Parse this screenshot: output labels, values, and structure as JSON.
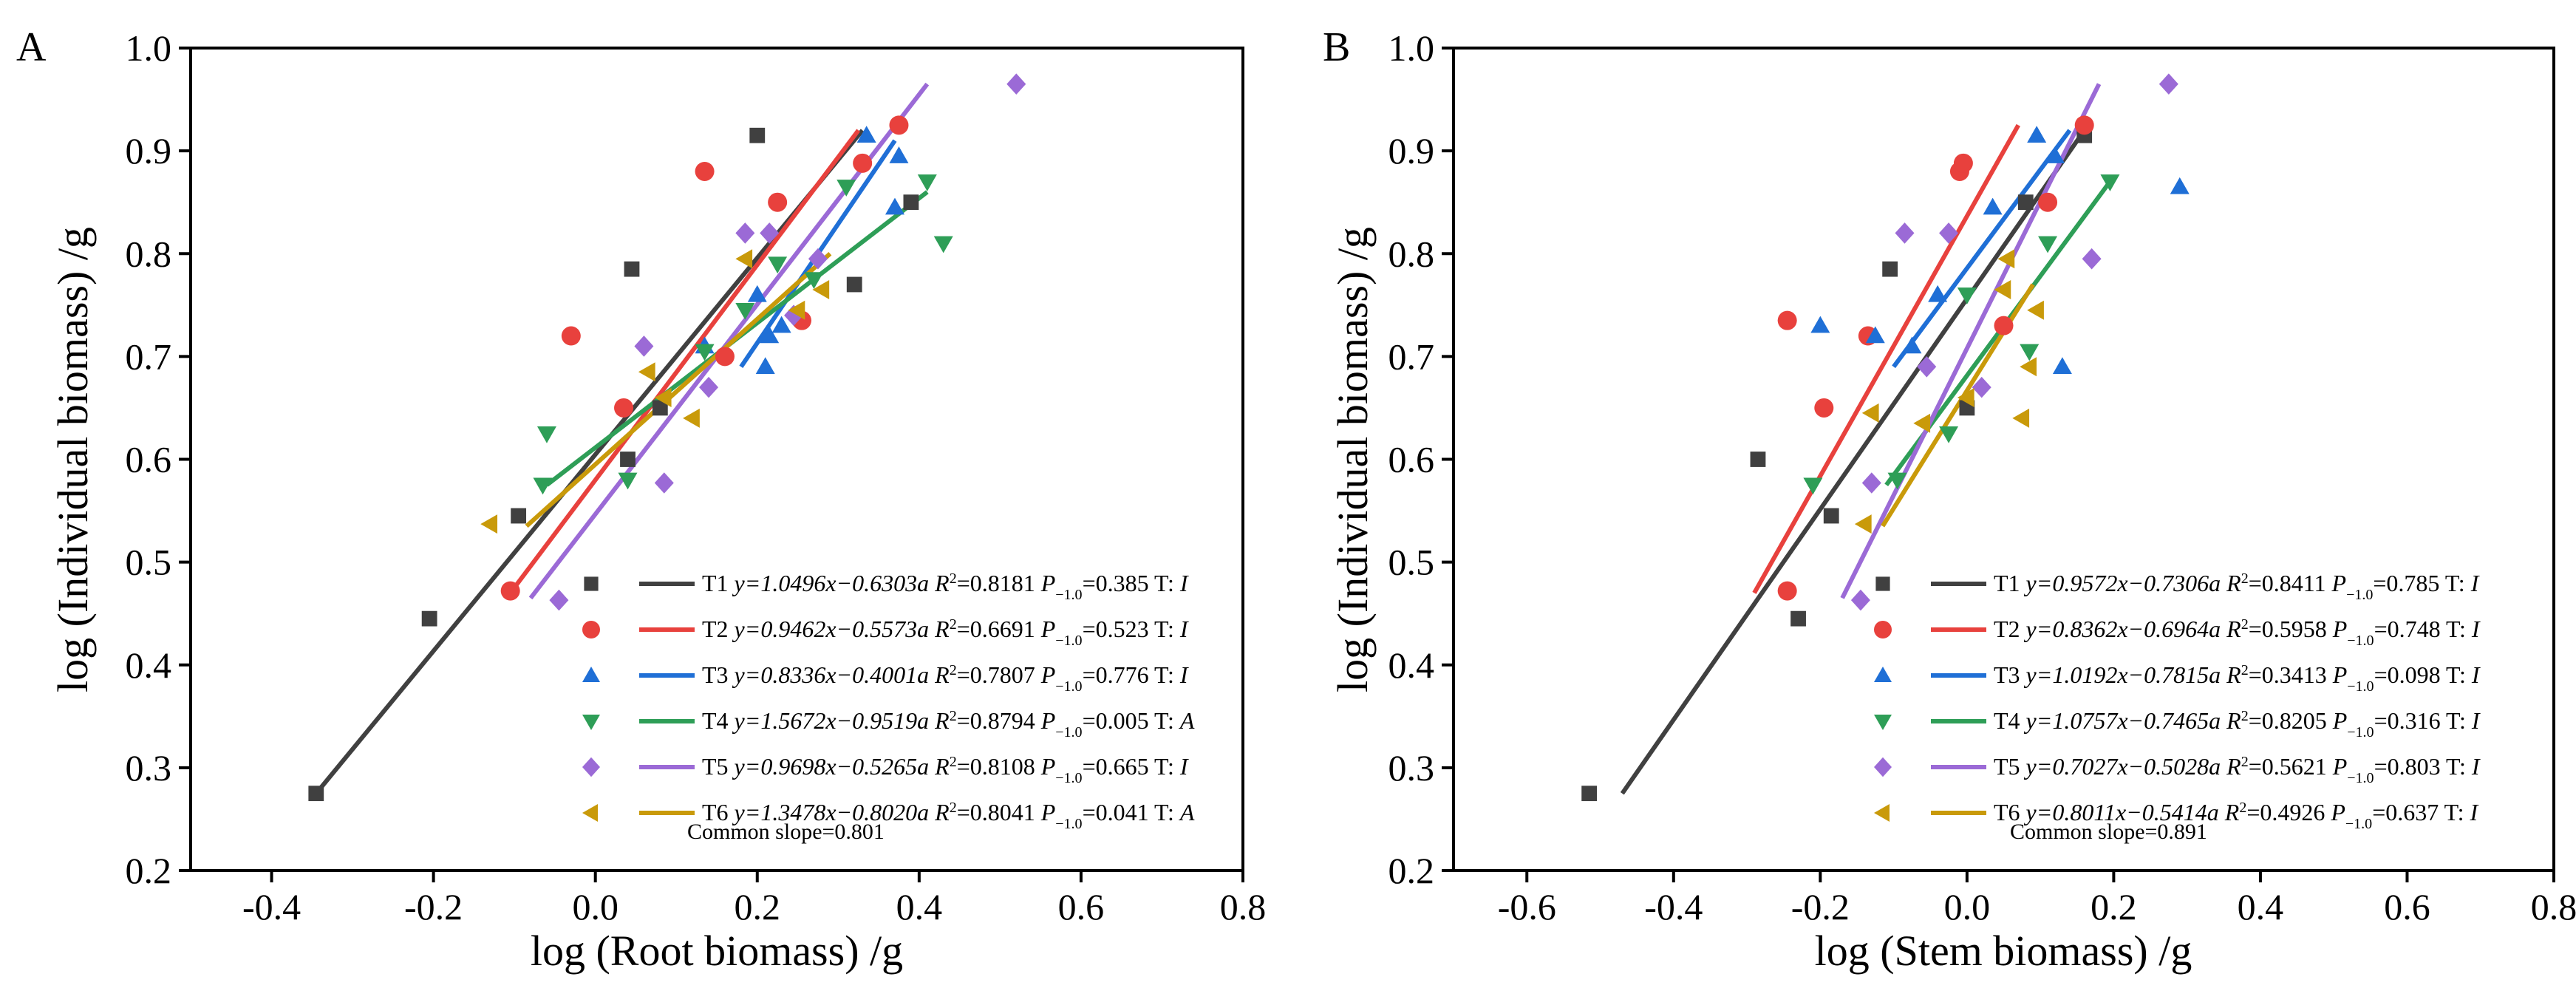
{
  "chart_data": [
    {
      "type": "scatter",
      "panel_label": "A",
      "xlabel": "log (Root biomass) /g",
      "ylabel": "log (Individual biomass) /g",
      "xlim": [
        -0.5,
        0.8
      ],
      "ylim": [
        0.2,
        1.0
      ],
      "xticks": [
        "-0.4",
        "-0.2",
        "0.0",
        "0.2",
        "0.4",
        "0.6",
        "0.8"
      ],
      "yticks": [
        "0.2",
        "0.3",
        "0.4",
        "0.5",
        "0.6",
        "0.7",
        "0.8",
        "0.9",
        "1.0"
      ],
      "legend_position": "bottom-right",
      "common_slope": "Common slope=0.801",
      "series": [
        {
          "name": "T1",
          "marker": "square",
          "color": "#404040",
          "equation": "y=1.0496x−0.6303a",
          "r2": "=0.8181",
          "p": "=0.385",
          "t": "I",
          "points": [
            [
              -0.345,
              0.275
            ],
            [
              -0.205,
              0.445
            ],
            [
              -0.095,
              0.545
            ],
            [
              0.04,
              0.6
            ],
            [
              0.045,
              0.785
            ],
            [
              0.2,
              0.915
            ],
            [
              0.32,
              0.77
            ],
            [
              0.39,
              0.85
            ],
            [
              0.08,
              0.65
            ]
          ],
          "line": [
            [
              -0.345,
              0.275
            ],
            [
              0.33,
              0.92
            ]
          ]
        },
        {
          "name": "T2",
          "marker": "circle",
          "color": "#e8413d",
          "equation": "y=0.9462x−0.5573a",
          "r2": "=0.6691",
          "p": "=0.523",
          "t": "I",
          "points": [
            [
              -0.105,
              0.472
            ],
            [
              -0.03,
              0.72
            ],
            [
              0.035,
              0.65
            ],
            [
              0.135,
              0.88
            ],
            [
              0.225,
              0.85
            ],
            [
              0.255,
              0.735
            ],
            [
              0.33,
              0.888
            ],
            [
              0.375,
              0.925
            ],
            [
              0.16,
              0.7
            ]
          ],
          "line": [
            [
              -0.105,
              0.47
            ],
            [
              0.325,
              0.92
            ]
          ]
        },
        {
          "name": "T3",
          "marker": "triangle-up",
          "color": "#1f6fd6",
          "equation": "y=0.8336x−0.4001a",
          "r2": "=0.7807",
          "p": "=0.776",
          "t": "I",
          "points": [
            [
              0.135,
              0.71
            ],
            [
              0.2,
              0.76
            ],
            [
              0.21,
              0.69
            ],
            [
              0.23,
              0.73
            ],
            [
              0.215,
              0.72
            ],
            [
              0.335,
              0.915
            ],
            [
              0.37,
              0.845
            ],
            [
              0.375,
              0.895
            ]
          ],
          "line": [
            [
              0.18,
              0.69
            ],
            [
              0.37,
              0.91
            ]
          ]
        },
        {
          "name": "T4",
          "marker": "triangle-down",
          "color": "#2e9e57",
          "equation": "y=1.5672x−0.9519a",
          "r2": "=0.8794",
          "p": "=0.005",
          "t": "A",
          "points": [
            [
              -0.06,
              0.625
            ],
            [
              -0.065,
              0.575
            ],
            [
              0.04,
              0.58
            ],
            [
              0.135,
              0.705
            ],
            [
              0.185,
              0.745
            ],
            [
              0.225,
              0.79
            ],
            [
              0.27,
              0.775
            ],
            [
              0.31,
              0.865
            ],
            [
              0.41,
              0.87
            ],
            [
              0.43,
              0.81
            ]
          ],
          "line": [
            [
              -0.06,
              0.575
            ],
            [
              0.41,
              0.86
            ]
          ]
        },
        {
          "name": "T5",
          "marker": "diamond",
          "color": "#9b6ad6",
          "equation": "y=0.9698x−0.5265a",
          "r2": "=0.8108",
          "p": "=0.665",
          "t": "I",
          "points": [
            [
              -0.045,
              0.463
            ],
            [
              0.06,
              0.71
            ],
            [
              0.085,
              0.577
            ],
            [
              0.14,
              0.67
            ],
            [
              0.185,
              0.82
            ],
            [
              0.215,
              0.82
            ],
            [
              0.245,
              0.74
            ],
            [
              0.275,
              0.795
            ],
            [
              0.52,
              0.965
            ]
          ],
          "line": [
            [
              -0.08,
              0.465
            ],
            [
              0.41,
              0.965
            ]
          ]
        },
        {
          "name": "T6",
          "marker": "triangle-left",
          "color": "#c99a0a",
          "equation": "y=1.3478x−0.8020a",
          "r2": "=0.8041",
          "p": "=0.041",
          "t": "A",
          "points": [
            [
              -0.13,
              0.537
            ],
            [
              0.065,
              0.685
            ],
            [
              0.085,
              0.66
            ],
            [
              0.12,
              0.64
            ],
            [
              0.185,
              0.795
            ],
            [
              0.25,
              0.745
            ],
            [
              0.28,
              0.765
            ]
          ],
          "line": [
            [
              -0.085,
              0.535
            ],
            [
              0.29,
              0.8
            ]
          ]
        }
      ]
    },
    {
      "type": "scatter",
      "panel_label": "B",
      "xlabel": "log (Stem biomass) /g",
      "ylabel": "log (Individual biomass) /g",
      "xlim": [
        -0.7,
        0.8
      ],
      "ylim": [
        0.2,
        1.0
      ],
      "xticks": [
        "-0.6",
        "-0.4",
        "-0.2",
        "0.0",
        "0.2",
        "0.4",
        "0.6",
        "0.8"
      ],
      "yticks": [
        "0.2",
        "0.3",
        "0.4",
        "0.5",
        "0.6",
        "0.7",
        "0.8",
        "0.9",
        "1.0"
      ],
      "legend_position": "bottom-right",
      "common_slope": "Common slope=0.891",
      "series": [
        {
          "name": "T1",
          "marker": "square",
          "color": "#404040",
          "equation": "y=0.9572x−0.7306a",
          "r2": "=0.8411",
          "p": "=0.785",
          "t": "I",
          "points": [
            [
              -0.515,
              0.275
            ],
            [
              -0.285,
              0.6
            ],
            [
              -0.23,
              0.445
            ],
            [
              -0.185,
              0.545
            ],
            [
              -0.105,
              0.785
            ],
            [
              0.0,
              0.65
            ],
            [
              0.08,
              0.85
            ],
            [
              0.16,
              0.915
            ]
          ],
          "line": [
            [
              -0.47,
              0.275
            ],
            [
              0.16,
              0.92
            ]
          ]
        },
        {
          "name": "T2",
          "marker": "circle",
          "color": "#e8413d",
          "equation": "y=0.8362x−0.6964a",
          "r2": "=0.5958",
          "p": "=0.748",
          "t": "I",
          "points": [
            [
              -0.245,
              0.735
            ],
            [
              -0.245,
              0.472
            ],
            [
              -0.195,
              0.65
            ],
            [
              -0.135,
              0.72
            ],
            [
              -0.01,
              0.88
            ],
            [
              -0.005,
              0.888
            ],
            [
              0.05,
              0.73
            ],
            [
              0.11,
              0.85
            ],
            [
              0.16,
              0.925
            ]
          ],
          "line": [
            [
              -0.29,
              0.47
            ],
            [
              0.07,
              0.925
            ]
          ]
        },
        {
          "name": "T3",
          "marker": "triangle-up",
          "color": "#1f6fd6",
          "equation": "y=1.0192x−0.7815a",
          "r2": "=0.3413",
          "p": "=0.098",
          "t": "I",
          "points": [
            [
              -0.2,
              0.73
            ],
            [
              -0.125,
              0.72
            ],
            [
              -0.075,
              0.71
            ],
            [
              -0.04,
              0.76
            ],
            [
              0.035,
              0.845
            ],
            [
              0.095,
              0.915
            ],
            [
              0.13,
              0.69
            ],
            [
              0.12,
              0.895
            ],
            [
              0.29,
              0.865
            ]
          ],
          "line": [
            [
              -0.1,
              0.69
            ],
            [
              0.14,
              0.92
            ]
          ]
        },
        {
          "name": "T4",
          "marker": "triangle-down",
          "color": "#2e9e57",
          "equation": "y=1.0757x−0.7465a",
          "r2": "=0.8205",
          "p": "=0.316",
          "t": "I",
          "points": [
            [
              -0.21,
              0.575
            ],
            [
              -0.095,
              0.58
            ],
            [
              -0.025,
              0.625
            ],
            [
              0.0,
              0.76
            ],
            [
              0.085,
              0.705
            ],
            [
              0.11,
              0.81
            ],
            [
              0.195,
              0.87
            ]
          ],
          "line": [
            [
              -0.11,
              0.575
            ],
            [
              0.2,
              0.875
            ]
          ]
        },
        {
          "name": "T5",
          "marker": "diamond",
          "color": "#9b6ad6",
          "equation": "y=0.7027x−0.5028a",
          "r2": "=0.5621",
          "p": "=0.803",
          "t": "I",
          "points": [
            [
              -0.145,
              0.463
            ],
            [
              -0.13,
              0.577
            ],
            [
              -0.085,
              0.82
            ],
            [
              -0.055,
              0.69
            ],
            [
              -0.025,
              0.82
            ],
            [
              0.02,
              0.67
            ],
            [
              0.17,
              0.795
            ],
            [
              0.275,
              0.965
            ]
          ],
          "line": [
            [
              -0.17,
              0.465
            ],
            [
              0.18,
              0.965
            ]
          ]
        },
        {
          "name": "T6",
          "marker": "triangle-left",
          "color": "#c99a0a",
          "equation": "y=0.8011x−0.5414a",
          "r2": "=0.4926",
          "p": "=0.637",
          "t": "I",
          "points": [
            [
              -0.14,
              0.537
            ],
            [
              -0.13,
              0.645
            ],
            [
              -0.06,
              0.635
            ],
            [
              0.0,
              0.66
            ],
            [
              0.05,
              0.765
            ],
            [
              0.055,
              0.795
            ],
            [
              0.075,
              0.64
            ],
            [
              0.095,
              0.745
            ],
            [
              0.085,
              0.69
            ]
          ],
          "line": [
            [
              -0.115,
              0.535
            ],
            [
              0.09,
              0.77
            ]
          ]
        }
      ]
    }
  ]
}
